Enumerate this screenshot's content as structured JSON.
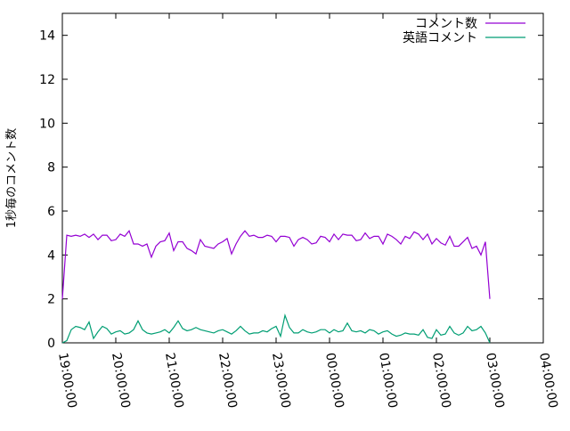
{
  "chart_data": {
    "type": "line",
    "title": "",
    "xlabel": "",
    "ylabel": "1秒毎のコメント数",
    "ylim": [
      0,
      15
    ],
    "yticks": [
      0,
      2,
      4,
      6,
      8,
      10,
      12,
      14
    ],
    "xticks": [
      "19:00:00",
      "20:00:00",
      "21:00:00",
      "22:00:00",
      "23:00:00",
      "00:00:00",
      "01:00:00",
      "02:00:00",
      "03:00:00",
      "04:00:00"
    ],
    "xlim": [
      "19:00:00",
      "04:00:00"
    ],
    "grid": false,
    "legend_position": "top-right",
    "x": [
      "19:00",
      "19:05",
      "19:10",
      "19:15",
      "19:20",
      "19:25",
      "19:30",
      "19:35",
      "19:40",
      "19:45",
      "19:50",
      "19:55",
      "20:00",
      "20:05",
      "20:10",
      "20:15",
      "20:20",
      "20:25",
      "20:30",
      "20:35",
      "20:40",
      "20:45",
      "20:50",
      "20:55",
      "21:00",
      "21:05",
      "21:10",
      "21:15",
      "21:20",
      "21:25",
      "21:30",
      "21:35",
      "21:40",
      "21:45",
      "21:50",
      "21:55",
      "22:00",
      "22:05",
      "22:10",
      "22:15",
      "22:20",
      "22:25",
      "22:30",
      "22:35",
      "22:40",
      "22:45",
      "22:50",
      "22:55",
      "23:00",
      "23:05",
      "23:10",
      "23:15",
      "23:20",
      "23:25",
      "23:30",
      "23:35",
      "23:40",
      "23:45",
      "23:50",
      "23:55",
      "00:00",
      "00:05",
      "00:10",
      "00:15",
      "00:20",
      "00:25",
      "00:30",
      "00:35",
      "00:40",
      "00:45",
      "00:50",
      "00:55",
      "01:00",
      "01:05",
      "01:10",
      "01:15",
      "01:20",
      "01:25",
      "01:30",
      "01:35",
      "01:40",
      "01:45",
      "01:50",
      "01:55",
      "02:00",
      "02:05",
      "02:10",
      "02:15",
      "02:20",
      "02:25",
      "02:30",
      "02:35",
      "02:40",
      "02:45",
      "02:50",
      "02:55",
      "03:00"
    ],
    "series": [
      {
        "name": "コメント数",
        "color": "#9400d3",
        "values": [
          2.0,
          4.9,
          4.85,
          4.9,
          4.85,
          4.95,
          4.8,
          4.95,
          4.7,
          4.9,
          4.9,
          4.65,
          4.7,
          4.95,
          4.85,
          5.1,
          4.5,
          4.5,
          4.4,
          4.5,
          3.9,
          4.4,
          4.6,
          4.65,
          5.0,
          4.2,
          4.6,
          4.6,
          4.3,
          4.2,
          4.05,
          4.7,
          4.4,
          4.35,
          4.3,
          4.5,
          4.6,
          4.75,
          4.05,
          4.5,
          4.85,
          5.1,
          4.85,
          4.9,
          4.8,
          4.8,
          4.9,
          4.85,
          4.6,
          4.85,
          4.85,
          4.8,
          4.4,
          4.7,
          4.8,
          4.7,
          4.5,
          4.55,
          4.85,
          4.8,
          4.6,
          4.95,
          4.7,
          4.95,
          4.9,
          4.9,
          4.65,
          4.7,
          5.0,
          4.75,
          4.85,
          4.85,
          4.5,
          4.95,
          4.85,
          4.7,
          4.5,
          4.85,
          4.75,
          5.05,
          4.95,
          4.7,
          4.95,
          4.5,
          4.75,
          4.55,
          4.45,
          4.85,
          4.4,
          4.4,
          4.6,
          4.8,
          4.3,
          4.4,
          4.0,
          4.6,
          2.0
        ]
      },
      {
        "name": "英語コメント",
        "color": "#009e73",
        "values": [
          0.0,
          0.1,
          0.6,
          0.75,
          0.7,
          0.6,
          0.95,
          0.2,
          0.5,
          0.75,
          0.65,
          0.4,
          0.5,
          0.55,
          0.4,
          0.45,
          0.6,
          1.0,
          0.6,
          0.45,
          0.4,
          0.45,
          0.5,
          0.6,
          0.45,
          0.7,
          1.0,
          0.65,
          0.55,
          0.6,
          0.7,
          0.6,
          0.55,
          0.5,
          0.45,
          0.55,
          0.6,
          0.5,
          0.4,
          0.55,
          0.75,
          0.55,
          0.4,
          0.45,
          0.45,
          0.55,
          0.5,
          0.65,
          0.75,
          0.3,
          1.25,
          0.7,
          0.45,
          0.45,
          0.6,
          0.5,
          0.45,
          0.5,
          0.6,
          0.6,
          0.45,
          0.6,
          0.5,
          0.55,
          0.9,
          0.55,
          0.5,
          0.55,
          0.45,
          0.6,
          0.55,
          0.4,
          0.5,
          0.55,
          0.4,
          0.3,
          0.35,
          0.45,
          0.4,
          0.4,
          0.35,
          0.6,
          0.25,
          0.2,
          0.6,
          0.35,
          0.4,
          0.75,
          0.45,
          0.35,
          0.45,
          0.75,
          0.55,
          0.6,
          0.75,
          0.45,
          0.0
        ]
      }
    ]
  }
}
